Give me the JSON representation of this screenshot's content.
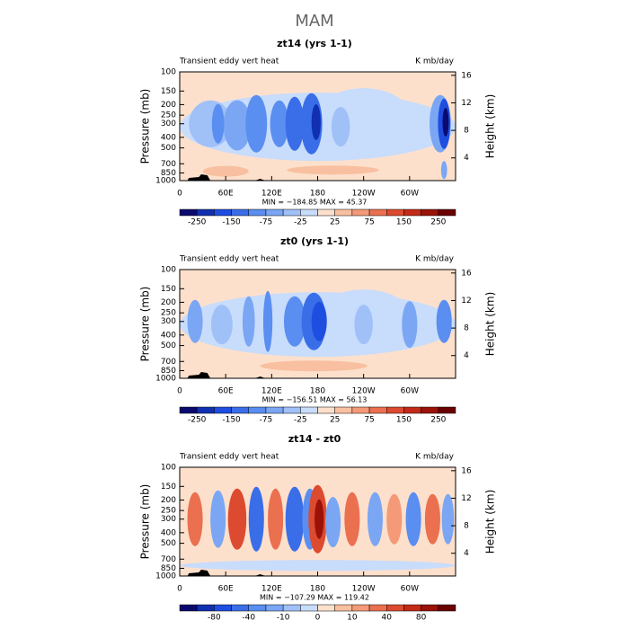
{
  "title": "MAM",
  "chart_data": [
    {
      "type": "contour",
      "title": "zt14 (yrs 1-1)",
      "left_label": "Transient eddy vert heat",
      "right_label": "K mb/day",
      "ylabel": "Pressure (mb)",
      "y2label": "Height (km)",
      "log_y": true,
      "xlim": [
        0,
        360
      ],
      "xticks": [
        0,
        {
          "value": 60,
          "label": "60E"
        },
        {
          "value": 120,
          "label": "120E"
        },
        180,
        {
          "value": 240,
          "label": "120W"
        },
        {
          "value": 300,
          "label": "60W"
        }
      ],
      "ylim": [
        1000,
        100
      ],
      "yticks": [
        100,
        150,
        200,
        250,
        300,
        400,
        500,
        700,
        850,
        1000
      ],
      "y2lim": [
        0.7,
        16.5
      ],
      "y2ticks": [
        4,
        8,
        12,
        16
      ],
      "stats": "MIN = −184.85   MAX =  45.37",
      "colorbar": {
        "labels": [
          -250,
          -150,
          -75,
          -25,
          25,
          75,
          150,
          250
        ],
        "colors": [
          "#0a0a6e",
          "#1030b0",
          "#1e4ee0",
          "#3a6ee8",
          "#5a8ef0",
          "#7aa6f4",
          "#a0c0f8",
          "#c8dcfc",
          "#fde0cc",
          "#f8c0a0",
          "#f49a78",
          "#ea7050",
          "#dc4a30",
          "#c42a18",
          "#9a1208",
          "#6a0000"
        ]
      }
    },
    {
      "type": "contour",
      "title": "zt0 (yrs 1-1)",
      "left_label": "Transient eddy vert heat",
      "right_label": "K mb/day",
      "ylabel": "Pressure (mb)",
      "y2label": "Height (km)",
      "log_y": true,
      "xlim": [
        0,
        360
      ],
      "xticks": [
        0,
        {
          "value": 60,
          "label": "60E"
        },
        {
          "value": 120,
          "label": "120E"
        },
        180,
        {
          "value": 240,
          "label": "120W"
        },
        {
          "value": 300,
          "label": "60W"
        }
      ],
      "ylim": [
        1000,
        100
      ],
      "yticks": [
        100,
        150,
        200,
        250,
        300,
        400,
        500,
        700,
        850,
        1000
      ],
      "y2lim": [
        0.7,
        16.5
      ],
      "y2ticks": [
        4,
        8,
        12,
        16
      ],
      "stats": "MIN = −156.51   MAX =  56.13",
      "colorbar": {
        "labels": [
          -250,
          -150,
          -75,
          -25,
          25,
          75,
          150,
          250
        ],
        "colors": [
          "#0a0a6e",
          "#1030b0",
          "#1e4ee0",
          "#3a6ee8",
          "#5a8ef0",
          "#7aa6f4",
          "#a0c0f8",
          "#c8dcfc",
          "#fde0cc",
          "#f8c0a0",
          "#f49a78",
          "#ea7050",
          "#dc4a30",
          "#c42a18",
          "#9a1208",
          "#6a0000"
        ]
      }
    },
    {
      "type": "contour",
      "title": "zt14 - zt0",
      "left_label": "Transient eddy vert heat",
      "right_label": "K mb/day",
      "ylabel": "Pressure (mb)",
      "y2label": "Height (km)",
      "log_y": true,
      "xlim": [
        0,
        360
      ],
      "xticks": [
        0,
        {
          "value": 60,
          "label": "60E"
        },
        {
          "value": 120,
          "label": "120E"
        },
        180,
        {
          "value": 240,
          "label": "120W"
        },
        {
          "value": 300,
          "label": "60W"
        }
      ],
      "ylim": [
        1000,
        100
      ],
      "yticks": [
        100,
        150,
        200,
        250,
        300,
        400,
        500,
        700,
        850,
        1000
      ],
      "y2lim": [
        0.7,
        16.5
      ],
      "y2ticks": [
        4,
        8,
        12,
        16
      ],
      "stats": "MIN = −107.29   MAX = 119.42",
      "colorbar": {
        "labels": [
          -80,
          -40,
          -10,
          0,
          10,
          40,
          80
        ],
        "colors": [
          "#0a0a6e",
          "#1030b0",
          "#1e4ee0",
          "#3a6ee8",
          "#5a8ef0",
          "#7aa6f4",
          "#a0c0f8",
          "#c8dcfc",
          "#fde0cc",
          "#f8c0a0",
          "#f49a78",
          "#ea7050",
          "#dc4a30",
          "#c42a18",
          "#9a1208",
          "#6a0000"
        ]
      }
    }
  ]
}
